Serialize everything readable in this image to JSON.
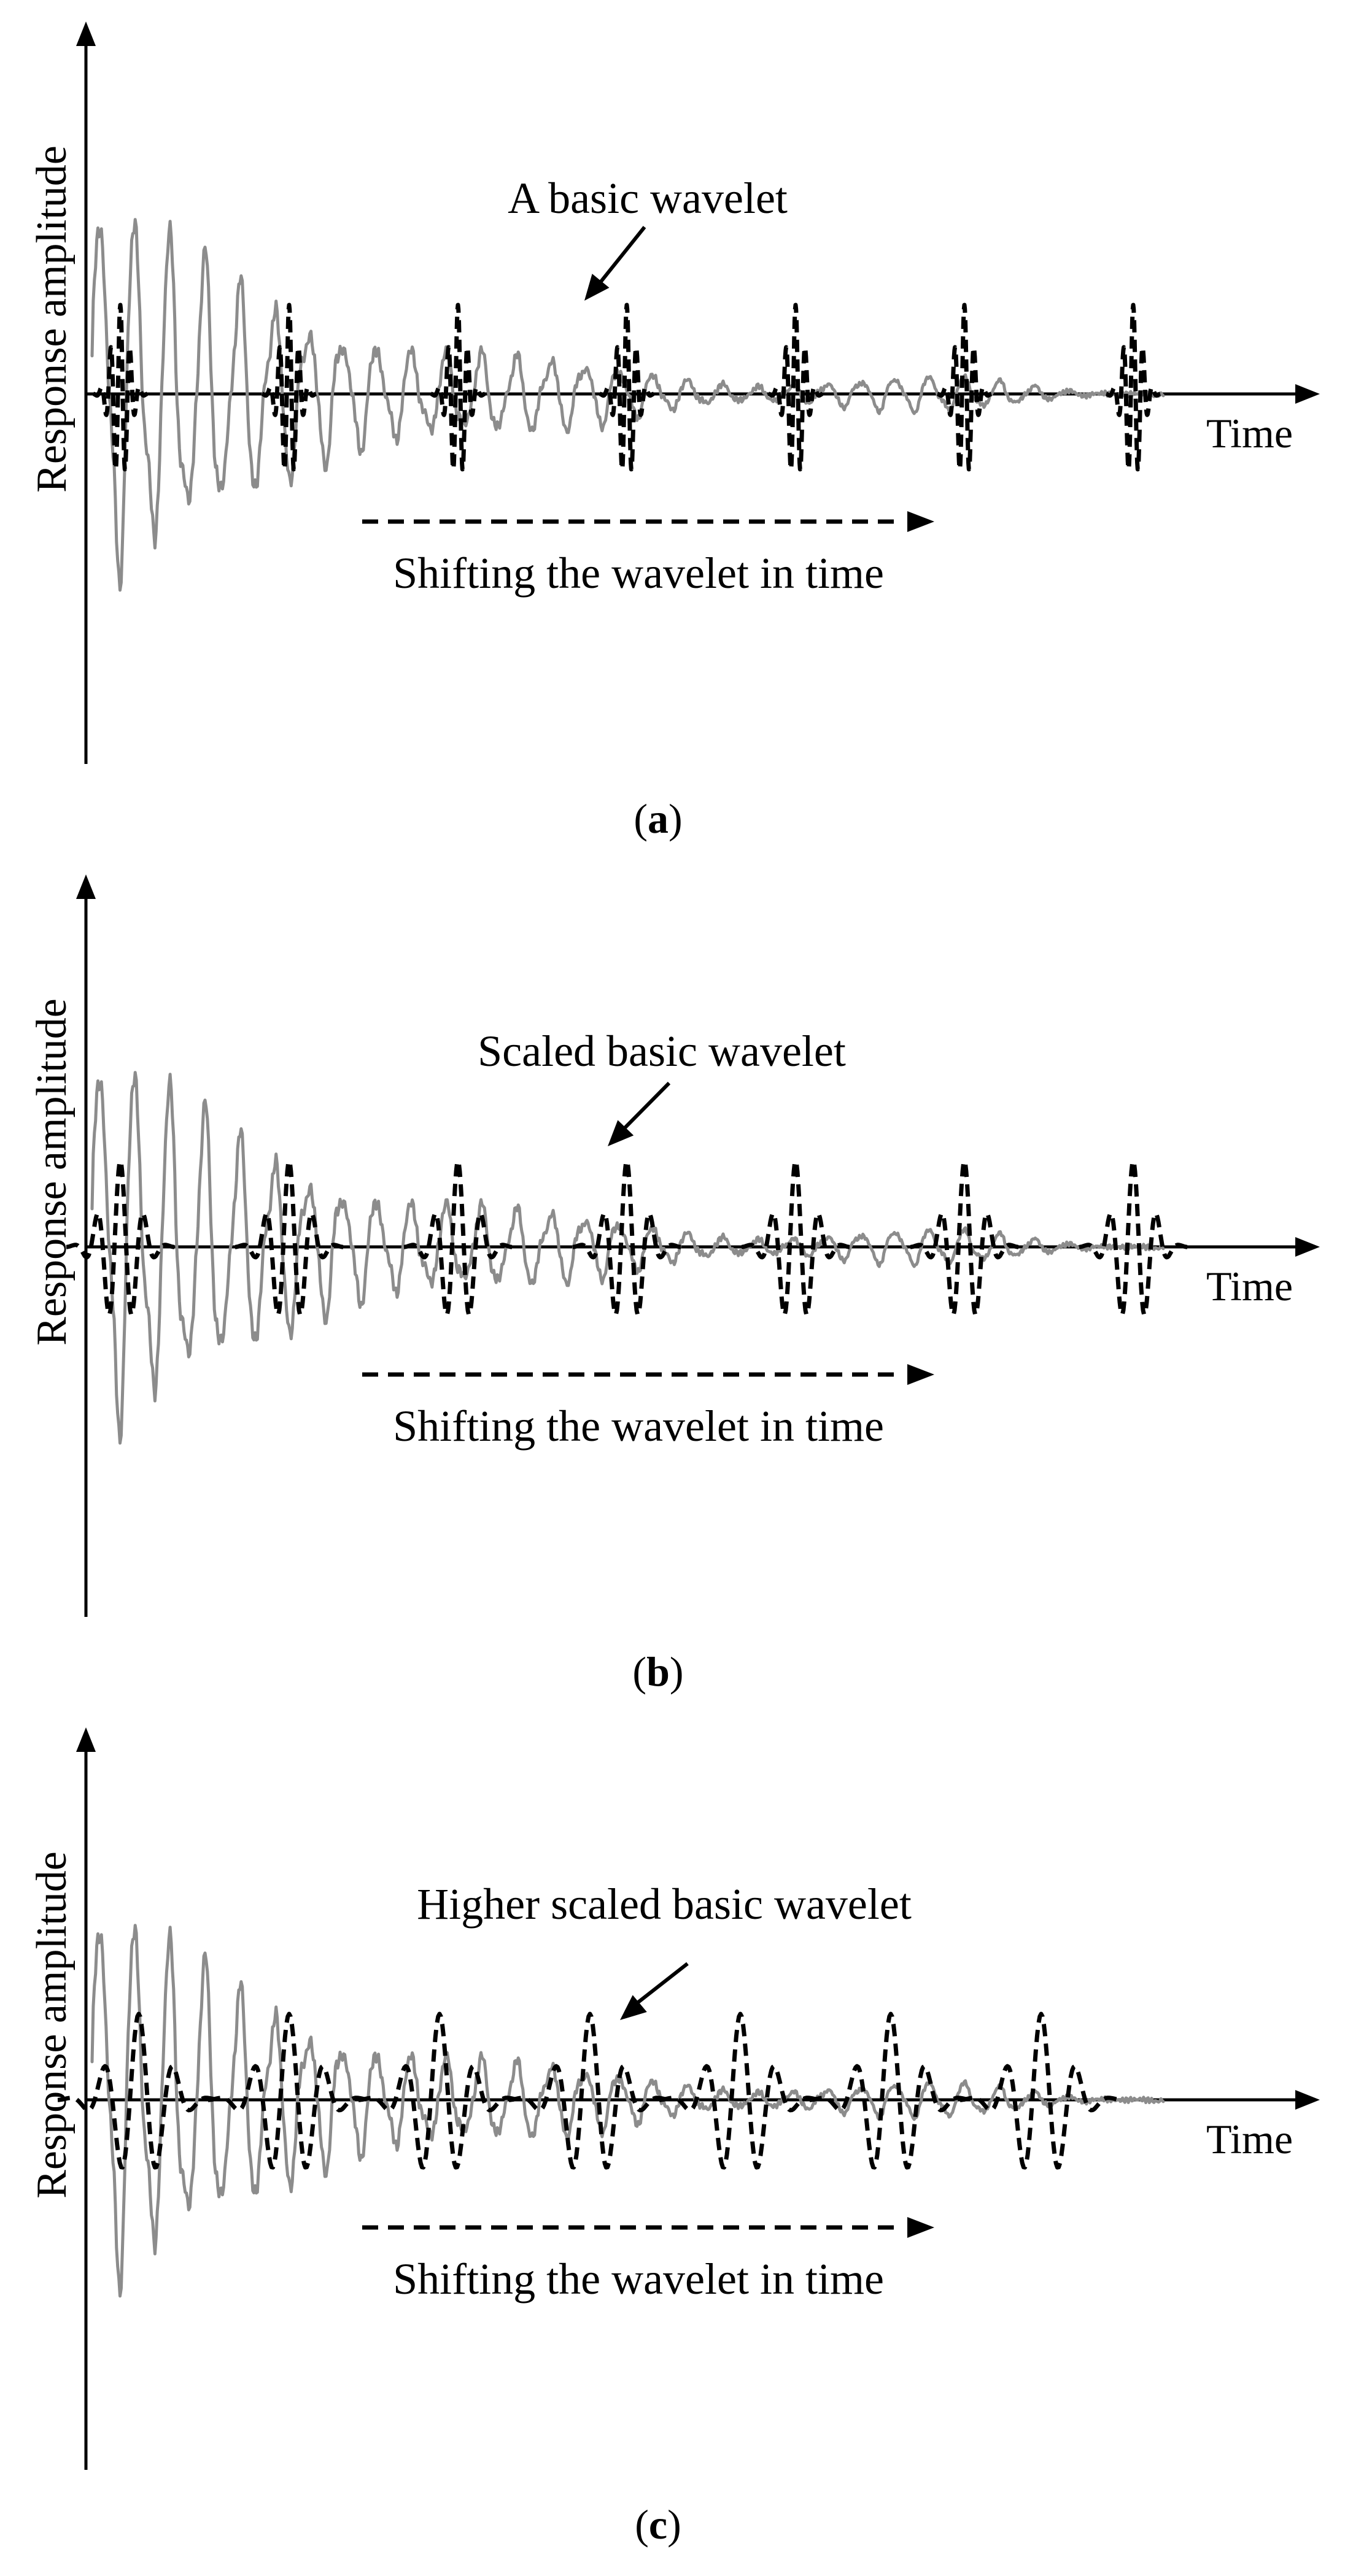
{
  "figure": {
    "colors": {
      "signal": "#8c8c8c",
      "wavelet": "#000000",
      "axis": "#000000"
    },
    "panels": [
      {
        "id": "a",
        "ylabel": "Response amplitude",
        "xlabel": "Time",
        "annotation": "A basic wavelet",
        "shift_label": "Shifting the wavelet in time",
        "caption_open": "(",
        "caption_letter": "a",
        "caption_close": ")",
        "wavelet_scale": 1,
        "wavelet_count": 7
      },
      {
        "id": "b",
        "ylabel": "Response amplitude",
        "xlabel": "Time",
        "annotation": "Scaled basic wavelet",
        "shift_label": "Shifting the wavelet in time",
        "caption_open": "(",
        "caption_letter": "b",
        "caption_close": ")",
        "wavelet_scale": 2,
        "wavelet_count": 7
      },
      {
        "id": "c",
        "ylabel": "Response amplitude",
        "xlabel": "Time",
        "annotation": "Higher scaled basic wavelet",
        "shift_label": "Shifting the wavelet in time",
        "caption_open": "(",
        "caption_letter": "c",
        "caption_close": ")",
        "wavelet_scale": 3,
        "wavelet_count": 7
      }
    ]
  }
}
